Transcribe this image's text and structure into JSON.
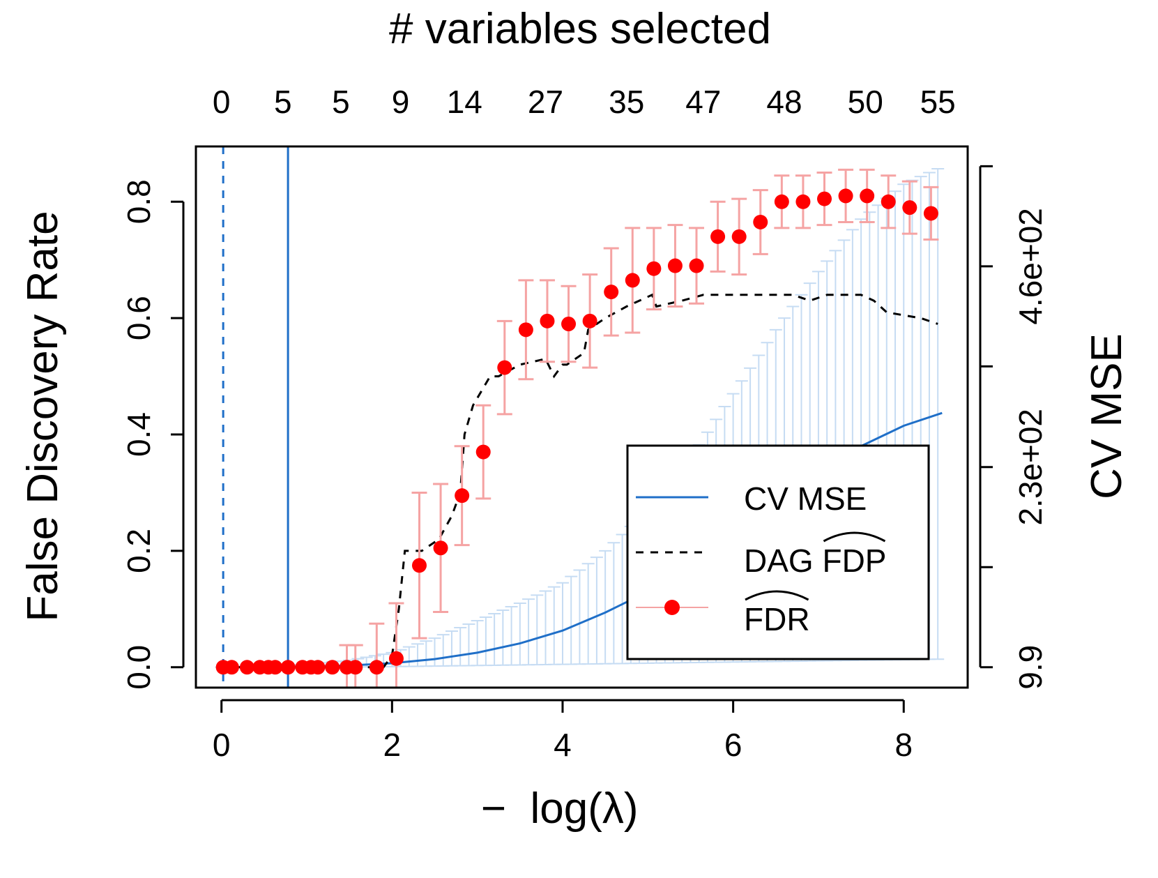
{
  "chart_data": {
    "type": "line",
    "top_axis": {
      "title": "# variables selected",
      "tick_x": [
        0.0,
        0.72,
        1.4,
        2.1,
        2.85,
        3.8,
        4.75,
        5.65,
        6.6,
        7.55,
        8.4
      ],
      "tick_labels": [
        "0",
        "5",
        "5",
        "9",
        "14",
        "27",
        "35",
        "47",
        "48",
        "50",
        "55"
      ]
    },
    "x_axis": {
      "label_main": "log(λ)",
      "label_sign": "−",
      "range": [
        -0.3,
        8.75
      ],
      "ticks": [
        0,
        2,
        4,
        6,
        8
      ],
      "tick_labels": [
        "0",
        "2",
        "4",
        "6",
        "8"
      ]
    },
    "y_axis": {
      "label": "False Discovery Rate",
      "range": [
        -0.035,
        0.895
      ],
      "ticks": [
        0,
        0.2,
        0.4,
        0.6,
        0.8
      ],
      "tick_labels": [
        "0.0",
        "0.2",
        "0.4",
        "0.6",
        "0.8"
      ]
    },
    "y2_axis": {
      "label": "CV MSE",
      "range": [
        -0.035,
        0.895
      ],
      "ticks": [
        0,
        0.172,
        0.344,
        0.517,
        0.689,
        0.861
      ],
      "labeled_ticks": [
        0,
        0.344,
        0.689
      ],
      "tick_labels": [
        "9.9",
        "2.3e+02",
        "4.6e+02"
      ]
    },
    "vlines": {
      "lambda_min": 0.02,
      "lambda_1se": 0.78
    },
    "series": [
      {
        "name": "CV MSE",
        "style": "solid",
        "color": "#1f6fc8",
        "x": [
          0,
          0.5,
          1.0,
          1.5,
          2.0,
          2.5,
          3.0,
          3.5,
          4.0,
          4.5,
          5.0,
          5.5,
          6.0,
          6.5,
          7.0,
          7.5,
          8.0,
          8.45
        ],
        "y": [
          0,
          0.0005,
          0.0015,
          0.003,
          0.007,
          0.014,
          0.025,
          0.041,
          0.063,
          0.094,
          0.13,
          0.175,
          0.225,
          0.28,
          0.33,
          0.38,
          0.415,
          0.437
        ],
        "band_lower": [
          0,
          0,
          0,
          0.0005,
          0.001,
          0.002,
          0.003,
          0.004,
          0.005,
          0.006,
          0.007,
          0.008,
          0.009,
          0.01,
          0.011,
          0.012,
          0.013,
          0.014
        ],
        "band_upper": [
          0,
          0.001,
          0.005,
          0.012,
          0.025,
          0.05,
          0.08,
          0.11,
          0.145,
          0.2,
          0.27,
          0.36,
          0.47,
          0.58,
          0.68,
          0.77,
          0.83,
          0.86
        ],
        "band_color": "#c6dcf3"
      },
      {
        "name": "DAG FDP",
        "style": "dashed",
        "color": "#000000",
        "x": [
          0,
          1.9,
          2.0,
          2.08,
          2.15,
          2.35,
          2.55,
          2.7,
          2.8,
          2.85,
          2.95,
          3.15,
          3.25,
          3.5,
          3.8,
          3.9,
          4.0,
          4.05,
          4.25,
          4.3,
          4.5,
          4.75,
          5.05,
          5.1,
          5.4,
          5.65,
          5.85,
          6.25,
          6.55,
          6.7,
          6.9,
          7.1,
          7.5,
          7.65,
          7.8,
          8.2,
          8.4
        ],
        "y": [
          0,
          0,
          0.02,
          0.1,
          0.2,
          0.2,
          0.22,
          0.26,
          0.3,
          0.4,
          0.45,
          0.5,
          0.5,
          0.52,
          0.53,
          0.5,
          0.52,
          0.52,
          0.54,
          0.58,
          0.6,
          0.62,
          0.64,
          0.62,
          0.63,
          0.64,
          0.64,
          0.64,
          0.64,
          0.64,
          0.63,
          0.64,
          0.64,
          0.63,
          0.61,
          0.6,
          0.59
        ]
      },
      {
        "name": "FDR",
        "style": "points",
        "color": "#ff0000",
        "err_color": "#f5a3a3",
        "x": [
          0.02,
          0.12,
          0.3,
          0.45,
          0.55,
          0.63,
          0.78,
          0.95,
          1.05,
          1.13,
          1.3,
          1.47,
          1.57,
          1.82,
          2.05,
          2.32,
          2.57,
          2.82,
          3.07,
          3.32,
          3.57,
          3.82,
          4.07,
          4.32,
          4.57,
          4.82,
          5.07,
          5.32,
          5.57,
          5.82,
          6.07,
          6.32,
          6.57,
          6.82,
          7.07,
          7.32,
          7.57,
          7.82,
          8.07,
          8.32
        ],
        "y": [
          0,
          0,
          0,
          0,
          0,
          0,
          0,
          0,
          0,
          0,
          0,
          0,
          0,
          0,
          0.015,
          0.175,
          0.205,
          0.295,
          0.37,
          0.515,
          0.58,
          0.595,
          0.59,
          0.595,
          0.645,
          0.665,
          0.685,
          0.69,
          0.69,
          0.74,
          0.74,
          0.765,
          0.8,
          0.8,
          0.805,
          0.81,
          0.81,
          0.8,
          0.79,
          0.78
        ],
        "err": [
          0,
          0,
          0,
          0,
          0,
          0,
          0,
          0,
          0,
          0,
          0,
          0.038,
          0.038,
          0.075,
          0.095,
          0.125,
          0.11,
          0.085,
          0.08,
          0.08,
          0.085,
          0.07,
          0.065,
          0.08,
          0.075,
          0.09,
          0.07,
          0.07,
          0.065,
          0.06,
          0.065,
          0.055,
          0.045,
          0.045,
          0.045,
          0.045,
          0.045,
          0.045,
          0.045,
          0.045
        ]
      }
    ],
    "legend": {
      "placement": "bottom-right",
      "entries": [
        {
          "label": "CV MSE",
          "hat": false
        },
        {
          "label_prefix": "DAG ",
          "label_hat": "FDP",
          "hat": true
        },
        {
          "label_prefix": "",
          "label_hat": "FDR",
          "hat": true
        }
      ]
    }
  }
}
